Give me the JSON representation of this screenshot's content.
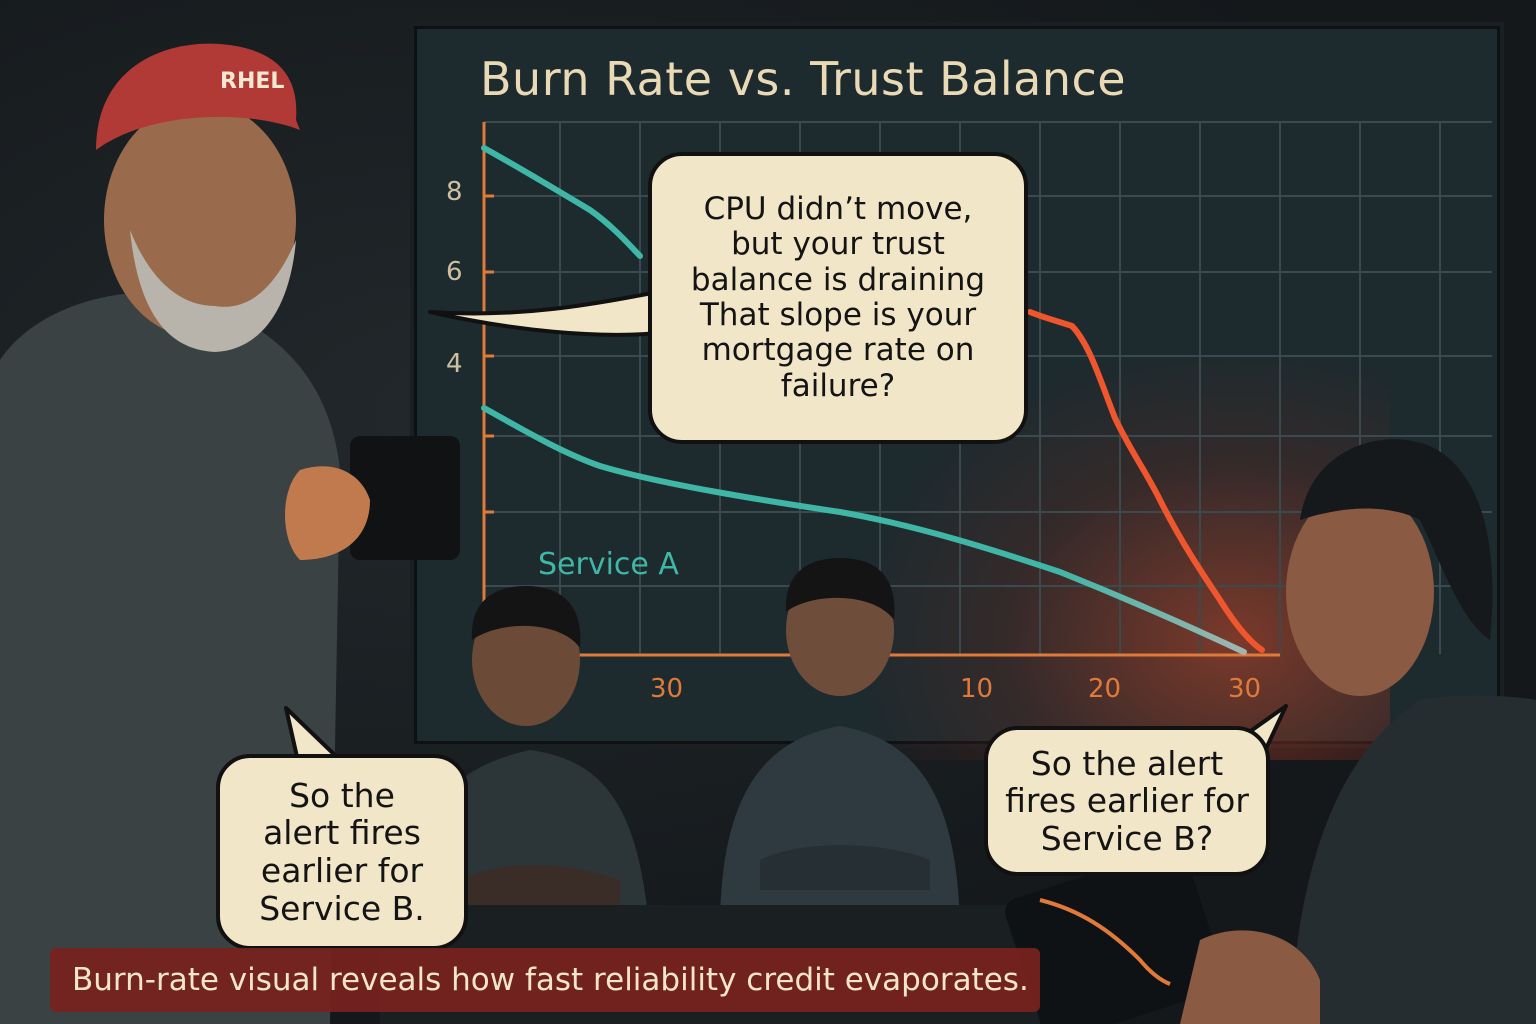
{
  "chart_title": "Burn Rate vs. Trust Balance",
  "y_ticks": [
    "8",
    "6",
    "4"
  ],
  "x_ticks": [
    "30",
    "10",
    "20",
    "30"
  ],
  "series_label": "Service A",
  "hat_text": "RHEL",
  "bubbles": {
    "main": "CPU didn’t move,\nbut your trust\nbalance is draining\n That slope is your\nmortgage rate on\nfailure?",
    "left": "So  the\nalert fires\nearlier for\nService B.",
    "right": "So the alert\nfires earlier for\nService B?"
  },
  "caption": "Burn-rate visual reveals how fast reliability credit evaporates.",
  "colors": {
    "axis": "#e07a3a",
    "teal_line": "#3fb6a6",
    "red_line": "#f0562e",
    "bubble_fill": "#f2e6c8",
    "caption_bg": "#7a221e"
  },
  "chart_data": {
    "type": "line",
    "title": "Burn Rate vs. Trust Balance",
    "x_ticks": [
      "30",
      "10",
      "20",
      "30"
    ],
    "y_ticks": [
      "8",
      "6",
      "4"
    ],
    "series": [
      {
        "name": "Service A",
        "color": "#3fb6a6"
      },
      {
        "color": "#f0562e"
      }
    ]
  }
}
